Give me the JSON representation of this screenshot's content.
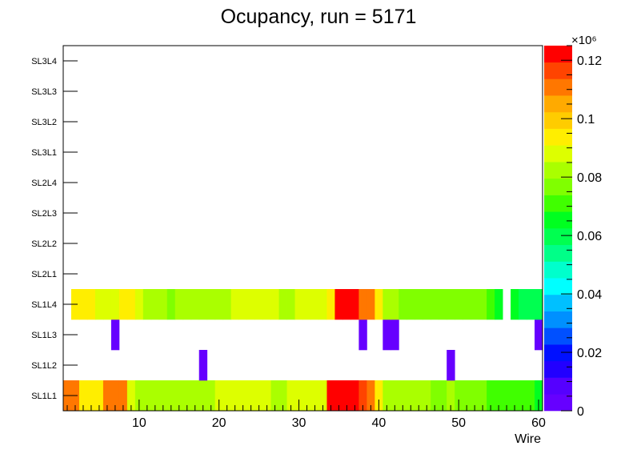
{
  "chart_data": {
    "type": "heatmap",
    "title": "Ocupancy, run = 5171",
    "xlabel": "Wire",
    "ylabel": "",
    "x_range": [
      0.5,
      60.5
    ],
    "x_ticks": [
      10,
      20,
      30,
      40,
      50,
      60
    ],
    "y_categories": [
      "SL1L1",
      "SL1L2",
      "SL1L3",
      "SL1L4",
      "SL2L1",
      "SL2L2",
      "SL2L3",
      "SL2L4",
      "SL3L1",
      "SL3L2",
      "SL3L3",
      "SL3L4"
    ],
    "z_range": [
      0,
      125000
    ],
    "z_ticks": [
      "0",
      "0.02",
      "0.04",
      "0.06",
      "0.08",
      "0.1",
      "0.12"
    ],
    "z_multiplier": "×10⁶",
    "rows": {
      "SL1L1": [
        110000,
        110000,
        95000,
        95000,
        95000,
        110000,
        110000,
        110000,
        90000,
        85000,
        85000,
        80000,
        85000,
        85000,
        85000,
        85000,
        80000,
        80000,
        85000,
        90000,
        90000,
        90000,
        90000,
        90000,
        90000,
        90000,
        85000,
        85000,
        90000,
        90000,
        90000,
        90000,
        90000,
        125000,
        125000,
        125000,
        125000,
        115000,
        110000,
        95000,
        85000,
        85000,
        85000,
        85000,
        85000,
        85000,
        75000,
        75000,
        80000,
        75000,
        75000,
        75000,
        75000,
        70000,
        70000,
        70000,
        70000,
        70000,
        70000,
        65000
      ],
      "SL1L2": [
        null,
        null,
        null,
        null,
        null,
        null,
        null,
        null,
        null,
        null,
        null,
        null,
        null,
        null,
        null,
        null,
        null,
        5000,
        null,
        null,
        null,
        null,
        null,
        null,
        null,
        null,
        null,
        null,
        null,
        null,
        null,
        null,
        null,
        null,
        null,
        null,
        null,
        null,
        null,
        null,
        null,
        null,
        null,
        null,
        null,
        null,
        null,
        null,
        5000,
        null,
        null,
        null,
        null,
        null,
        null,
        null,
        null,
        null,
        null,
        null
      ],
      "SL1L3": [
        null,
        null,
        null,
        null,
        null,
        null,
        5000,
        null,
        null,
        null,
        null,
        null,
        null,
        null,
        null,
        null,
        null,
        null,
        null,
        null,
        null,
        null,
        null,
        null,
        null,
        null,
        null,
        null,
        null,
        null,
        null,
        null,
        null,
        null,
        null,
        null,
        null,
        5000,
        null,
        null,
        5000,
        5000,
        null,
        null,
        null,
        null,
        null,
        null,
        null,
        null,
        null,
        null,
        null,
        null,
        null,
        null,
        null,
        null,
        null,
        5000
      ],
      "SL1L4": [
        null,
        95000,
        95000,
        95000,
        90000,
        90000,
        90000,
        95000,
        95000,
        90000,
        85000,
        80000,
        80000,
        75000,
        85000,
        85000,
        85000,
        80000,
        85000,
        85000,
        85000,
        90000,
        90000,
        90000,
        90000,
        90000,
        90000,
        85000,
        85000,
        90000,
        90000,
        90000,
        90000,
        95000,
        125000,
        125000,
        120000,
        110000,
        110000,
        95000,
        80000,
        80000,
        75000,
        75000,
        75000,
        75000,
        75000,
        75000,
        75000,
        75000,
        75000,
        75000,
        75000,
        70000,
        65000,
        null,
        65000,
        60000,
        60000,
        60000
      ],
      "SL2L1": [],
      "SL2L2": [],
      "SL2L3": [],
      "SL2L4": [],
      "SL3L1": [],
      "SL3L2": [],
      "SL3L3": [],
      "SL3L4": []
    },
    "grid": false,
    "legend": "color-palette-right"
  },
  "palette": [
    "#6600ff",
    "#5500ff",
    "#2200ff",
    "#0010ff",
    "#0050ff",
    "#0090ff",
    "#00c0ff",
    "#00ffff",
    "#00ffcc",
    "#00ff88",
    "#00ff50",
    "#00ff20",
    "#40ff00",
    "#80ff00",
    "#aaff00",
    "#ddff00",
    "#ffee00",
    "#ffcc00",
    "#ffaa00",
    "#ff7700",
    "#ff4400",
    "#ff0000"
  ]
}
